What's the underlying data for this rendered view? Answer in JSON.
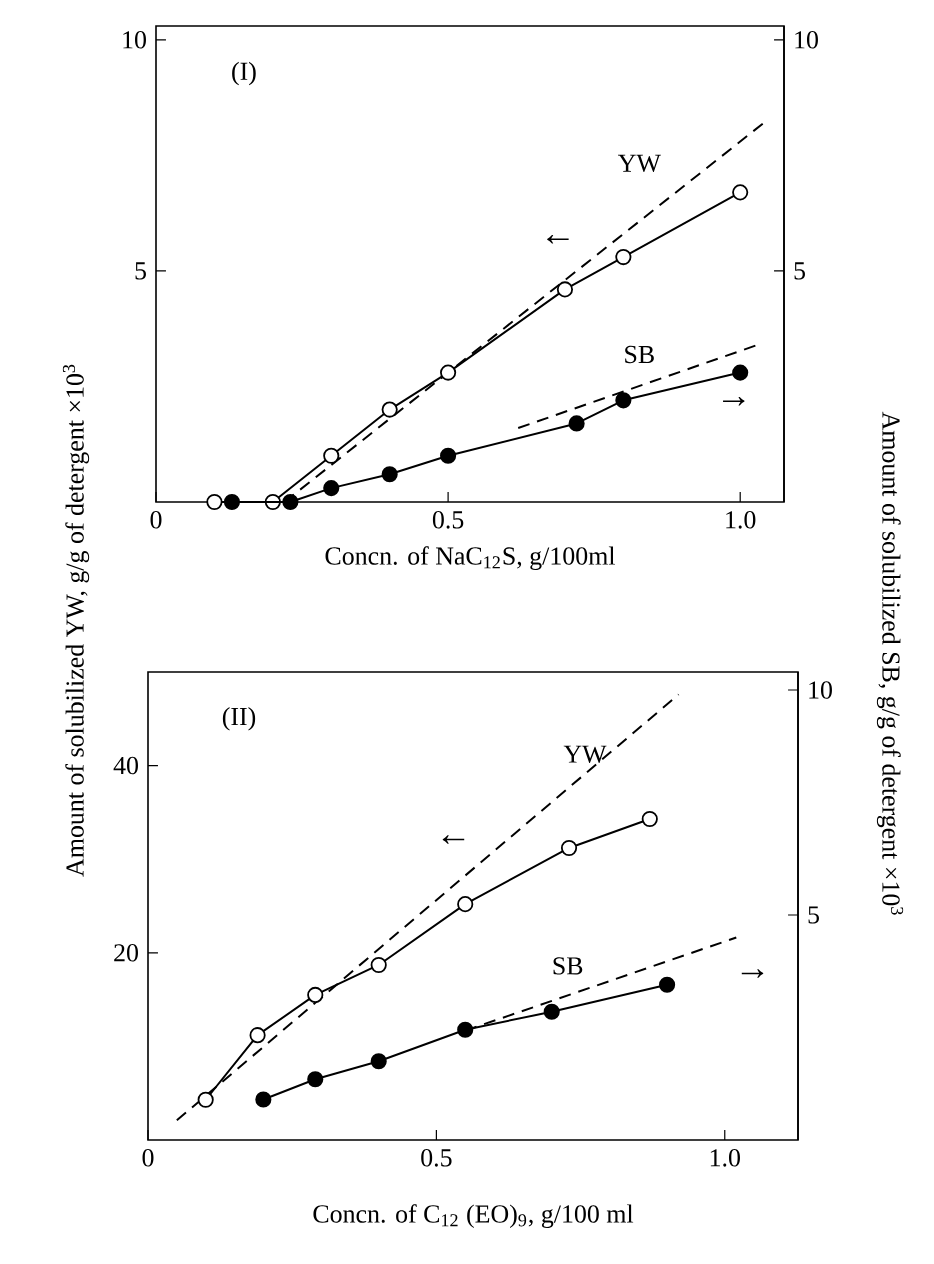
{
  "chart_data": [
    {
      "type": "line",
      "title": "(I)",
      "xlabel": "Concn. of NaC$_{12}$S, g/100ml",
      "ylabel": "Amount of solubilized YW, g/g of detergent ×10$^{3}$",
      "y2label": "Amount of solubilized SB, g/g of detergent ×10$^{3}$",
      "xlim": [
        0,
        1.075
      ],
      "xticks": [
        0,
        0.5,
        {
          "value": 1,
          "label": "1.0"
        }
      ],
      "ylim": [
        0,
        10.3
      ],
      "yticks": [
        5,
        10
      ],
      "y2lim": [
        0,
        10.3
      ],
      "y2ticks": [
        5,
        10
      ],
      "series": [
        {
          "name": "YW",
          "color": "#000000",
          "marker": "circle",
          "line_style": "solid",
          "x": [
            0.1,
            0.2,
            0.3,
            0.4,
            0.5,
            0.7,
            0.8,
            1.0
          ],
          "values": [
            0,
            0,
            1.0,
            2.0,
            2.8,
            4.6,
            5.3,
            6.7
          ],
          "colors": [
            "#ffffff",
            "#ffffff",
            "#ffffff",
            "#ffffff",
            "#ffffff",
            "#ffffff",
            "#ffffff",
            "#ffffff"
          ]
        },
        {
          "color": "#000000",
          "marker": "none",
          "line_style": "dashed",
          "x": [
            0.22,
            1.04
          ],
          "values": [
            0,
            8.2
          ]
        },
        {
          "name": "SB",
          "color": "#000000",
          "marker": "circle",
          "line_style": "solid",
          "axis": "y2",
          "x": [
            0.13,
            0.23,
            0.3,
            0.4,
            0.5,
            0.72,
            0.8,
            1.0
          ],
          "values": [
            0,
            0,
            0.3,
            0.6,
            1.0,
            1.7,
            2.2,
            2.8
          ],
          "colors": [
            "#000000",
            "#000000",
            "#000000",
            "#000000",
            "#000000",
            "#000000",
            "#000000",
            "#000000"
          ]
        },
        {
          "color": "#000000",
          "marker": "none",
          "line_style": "dashed",
          "axis": "y2",
          "x": [
            0.62,
            1.03
          ],
          "values": [
            1.6,
            3.4
          ]
        }
      ],
      "annotations": [
        "←",
        "→"
      ]
    },
    {
      "type": "line",
      "title": "(II)",
      "xlabel": "Concn. of C$_{12}$ (EO)$_{9}$, g/100 ml",
      "xlim": [
        0,
        1.127
      ],
      "xticks": [
        0,
        0.5,
        {
          "value": 1,
          "label": "1.0"
        }
      ],
      "ylim": [
        0,
        50
      ],
      "yticks": [
        20,
        40
      ],
      "y2lim": [
        0,
        10.4
      ],
      "y2ticks": [
        5,
        10
      ],
      "series": [
        {
          "name": "YW",
          "color": "#000000",
          "marker": "circle",
          "line_style": "solid",
          "x": [
            0.1,
            0.19,
            0.29,
            0.4,
            0.55,
            0.73,
            0.87
          ],
          "values": [
            4.3,
            11.2,
            15.5,
            18.7,
            25.2,
            31.2,
            34.3
          ],
          "colors": [
            "#ffffff",
            "#ffffff",
            "#ffffff",
            "#ffffff",
            "#ffffff",
            "#ffffff",
            "#ffffff"
          ]
        },
        {
          "color": "#000000",
          "marker": "none",
          "line_style": "dashed",
          "x": [
            0.05,
            0.92
          ],
          "values": [
            2.1,
            47.6
          ]
        },
        {
          "name": "SB",
          "color": "#000000",
          "marker": "circle",
          "line_style": "solid",
          "axis": "y2",
          "x": [
            0.2,
            0.29,
            0.4,
            0.55,
            0.7,
            0.9
          ],
          "values": [
            0.9,
            1.35,
            1.75,
            2.45,
            2.85,
            3.45
          ],
          "colors": [
            "#000000",
            "#000000",
            "#000000",
            "#000000",
            "#000000",
            "#000000"
          ]
        },
        {
          "color": "#000000",
          "marker": "none",
          "line_style": "dashed",
          "axis": "y2",
          "x": [
            0.55,
            1.02
          ],
          "values": [
            2.43,
            4.5
          ]
        }
      ],
      "annotations": [
        "←",
        "→"
      ]
    }
  ]
}
